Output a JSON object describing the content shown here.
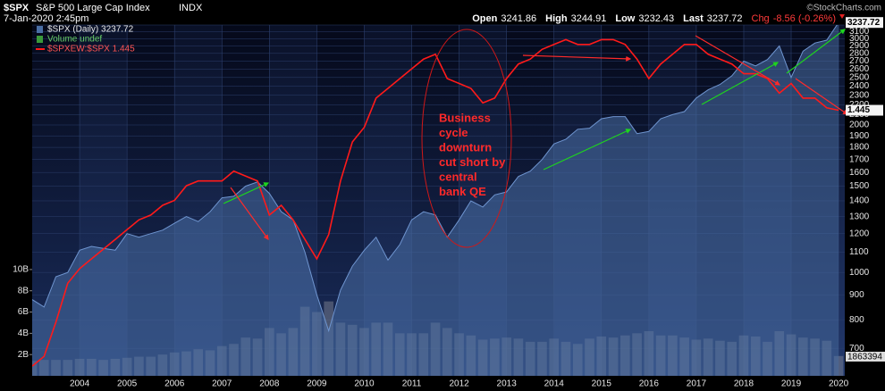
{
  "chart_data": {
    "type": "stock",
    "header": {
      "symbol": "$SPX",
      "name": "S&P 500 Large Cap Index",
      "exchange": "INDX",
      "date": "7-Jan-2020 2:45pm",
      "quote": [
        {
          "label": "Open",
          "value": "3241.86"
        },
        {
          "label": "High",
          "value": "3244.91"
        },
        {
          "label": "Low",
          "value": "3232.43"
        },
        {
          "label": "Last",
          "value": "3237.72"
        }
      ],
      "change": {
        "label": "Chg",
        "value": "-8.56 (-0.26%)"
      },
      "credit": "©StockCharts.com"
    },
    "annotation_lines": [
      "Business",
      "cycle",
      "downturn",
      "cut short by",
      "central",
      "bank QE"
    ],
    "x": [
      2003.0,
      2003.25,
      2003.5,
      2003.75,
      2004.0,
      2004.25,
      2004.5,
      2004.75,
      2005.0,
      2005.25,
      2005.5,
      2005.75,
      2006.0,
      2006.25,
      2006.5,
      2006.75,
      2007.0,
      2007.25,
      2007.5,
      2007.75,
      2008.0,
      2008.25,
      2008.5,
      2008.75,
      2009.0,
      2009.25,
      2009.5,
      2009.75,
      2010.0,
      2010.25,
      2010.5,
      2010.75,
      2011.0,
      2011.25,
      2011.5,
      2011.75,
      2012.0,
      2012.25,
      2012.5,
      2012.75,
      2013.0,
      2013.25,
      2013.5,
      2013.75,
      2014.0,
      2014.25,
      2014.5,
      2014.75,
      2015.0,
      2015.25,
      2015.5,
      2015.75,
      2016.0,
      2016.25,
      2016.5,
      2016.75,
      2017.0,
      2017.25,
      2017.5,
      2017.75,
      2018.0,
      2018.25,
      2018.5,
      2018.75,
      2019.0,
      2019.25,
      2019.5,
      2019.75,
      2020.0
    ],
    "xlim": [
      2003.0,
      2020.13
    ],
    "xticks": [
      2004,
      2005,
      2006,
      2007,
      2008,
      2009,
      2010,
      2011,
      2012,
      2013,
      2014,
      2015,
      2016,
      2017,
      2018,
      2019,
      2020
    ],
    "yscale": "log",
    "ylim": [
      615,
      3200
    ],
    "yticks": [
      700,
      800,
      900,
      1000,
      1100,
      1200,
      1300,
      1400,
      1500,
      1600,
      1700,
      1800,
      1900,
      2000,
      2100,
      2200,
      2300,
      2400,
      2500,
      2600,
      2700,
      2800,
      2900,
      3000,
      3100,
      3200
    ],
    "y2lim": [
      0,
      33
    ],
    "y2ticks": [
      {
        "value": 2,
        "label": "2B"
      },
      {
        "value": 4,
        "label": "4B"
      },
      {
        "value": 6,
        "label": "6B"
      },
      {
        "value": 8,
        "label": "8B"
      },
      {
        "value": 10,
        "label": "10B"
      }
    ],
    "y3lim": [
      0.9,
      1.62
    ],
    "grid": true,
    "series": [
      {
        "name": "$SPX (Daily) 3237.72",
        "style": "area",
        "color": "#6f95d0",
        "values": [
          880,
          850,
          980,
          1000,
          1110,
          1130,
          1120,
          1110,
          1200,
          1180,
          1200,
          1220,
          1260,
          1300,
          1270,
          1330,
          1420,
          1430,
          1500,
          1530,
          1450,
          1330,
          1280,
          1100,
          900,
          760,
          920,
          1030,
          1110,
          1180,
          1060,
          1140,
          1280,
          1330,
          1310,
          1180,
          1280,
          1400,
          1360,
          1440,
          1460,
          1570,
          1610,
          1700,
          1830,
          1870,
          1960,
          1970,
          2060,
          2080,
          2080,
          1920,
          1940,
          2060,
          2100,
          2130,
          2270,
          2360,
          2420,
          2520,
          2700,
          2640,
          2720,
          2900,
          2500,
          2830,
          2940,
          2980,
          3237.72
        ]
      },
      {
        "name": "Volume undef",
        "style": "bars",
        "axis": "y2",
        "color": "#8a8f99",
        "values": [
          1.4,
          1.5,
          1.5,
          1.5,
          1.6,
          1.6,
          1.5,
          1.6,
          1.7,
          1.8,
          1.8,
          2.0,
          2.2,
          2.3,
          2.5,
          2.4,
          2.8,
          3.0,
          3.6,
          3.5,
          4.5,
          4.0,
          4.5,
          6.5,
          6.0,
          7.0,
          5.0,
          4.8,
          4.5,
          5.0,
          5.0,
          4.0,
          4.0,
          4.0,
          5.0,
          4.5,
          4.0,
          3.8,
          3.4,
          3.5,
          3.6,
          3.5,
          3.2,
          3.2,
          3.5,
          3.2,
          3.0,
          3.5,
          3.7,
          3.6,
          3.8,
          4.0,
          4.2,
          3.8,
          3.8,
          3.6,
          3.4,
          3.5,
          3.3,
          3.2,
          3.8,
          3.7,
          3.2,
          4.2,
          3.9,
          3.6,
          3.5,
          3.3,
          1.863394
        ],
        "last_value_label": "1863394"
      },
      {
        "name": "$SPXEW:$SPX 1.445",
        "style": "line",
        "axis": "y3",
        "color": "#ff1a1a",
        "values": [
          0.92,
          0.94,
          1.01,
          1.09,
          1.12,
          1.14,
          1.16,
          1.18,
          1.2,
          1.22,
          1.23,
          1.25,
          1.26,
          1.29,
          1.3,
          1.3,
          1.3,
          1.32,
          1.31,
          1.3,
          1.23,
          1.25,
          1.22,
          1.18,
          1.14,
          1.19,
          1.3,
          1.38,
          1.41,
          1.47,
          1.49,
          1.51,
          1.53,
          1.55,
          1.56,
          1.51,
          1.5,
          1.49,
          1.46,
          1.47,
          1.51,
          1.54,
          1.55,
          1.57,
          1.58,
          1.59,
          1.58,
          1.58,
          1.59,
          1.59,
          1.58,
          1.55,
          1.51,
          1.54,
          1.56,
          1.58,
          1.58,
          1.56,
          1.55,
          1.54,
          1.52,
          1.52,
          1.51,
          1.48,
          1.5,
          1.47,
          1.47,
          1.45,
          1.445
        ]
      }
    ]
  }
}
